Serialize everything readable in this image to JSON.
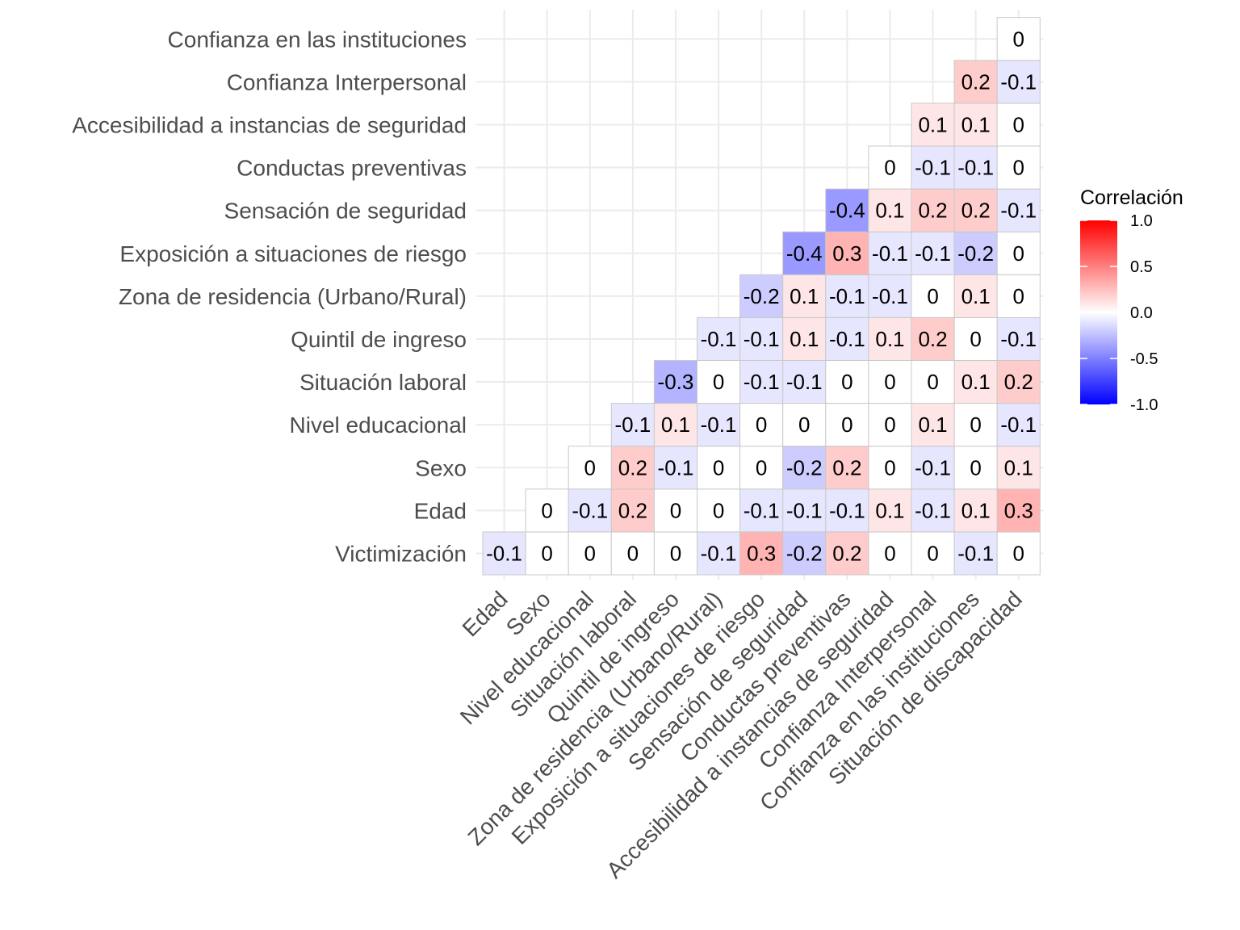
{
  "chart_data": {
    "type": "heatmap",
    "x_categories": [
      "Edad",
      "Sexo",
      "Nivel educacional",
      "Situación laboral",
      "Quintil de ingreso",
      "Zona de residencia (Urbano/Rural)",
      "Exposición a situaciones de riesgo",
      "Sensación de seguridad",
      "Conductas preventivas",
      "Accesibilidad a instancias de seguridad",
      "Confianza Interpersonal",
      "Confianza en las instituciones",
      "Situación de discapacidad"
    ],
    "y_categories": [
      "Victimización",
      "Edad",
      "Sexo",
      "Nivel educacional",
      "Situación laboral",
      "Quintil de ingreso",
      "Zona de residencia (Urbano/Rural)",
      "Exposición a situaciones de riesgo",
      "Sensación de seguridad",
      "Conductas preventivas",
      "Accesibilidad a instancias de seguridad",
      "Confianza Interpersonal",
      "Confianza en las instituciones"
    ],
    "values": [
      [
        -0.1,
        0,
        0,
        0,
        0,
        -0.1,
        0.3,
        -0.2,
        0.2,
        0,
        0,
        -0.1,
        0
      ],
      [
        null,
        0,
        -0.1,
        0.2,
        0,
        0,
        -0.1,
        -0.1,
        -0.1,
        0.1,
        -0.1,
        0.1,
        0.3
      ],
      [
        null,
        null,
        0,
        0.2,
        -0.1,
        0,
        0,
        -0.2,
        0.2,
        0,
        -0.1,
        0,
        0.1
      ],
      [
        null,
        null,
        null,
        -0.1,
        0.1,
        -0.1,
        0,
        0,
        0,
        0,
        0.1,
        0,
        -0.1
      ],
      [
        null,
        null,
        null,
        null,
        -0.3,
        0,
        -0.1,
        -0.1,
        0,
        0,
        0,
        0.1,
        0.2
      ],
      [
        null,
        null,
        null,
        null,
        null,
        -0.1,
        -0.1,
        0.1,
        -0.1,
        0.1,
        0.2,
        0,
        -0.1
      ],
      [
        null,
        null,
        null,
        null,
        null,
        null,
        -0.2,
        0.1,
        -0.1,
        -0.1,
        0,
        0.1,
        0
      ],
      [
        null,
        null,
        null,
        null,
        null,
        null,
        null,
        -0.4,
        0.3,
        -0.1,
        -0.1,
        -0.2,
        0
      ],
      [
        null,
        null,
        null,
        null,
        null,
        null,
        null,
        null,
        -0.4,
        0.1,
        0.2,
        0.2,
        -0.1
      ],
      [
        null,
        null,
        null,
        null,
        null,
        null,
        null,
        null,
        null,
        0,
        -0.1,
        -0.1,
        0
      ],
      [
        null,
        null,
        null,
        null,
        null,
        null,
        null,
        null,
        null,
        null,
        0.1,
        0.1,
        0
      ],
      [
        null,
        null,
        null,
        null,
        null,
        null,
        null,
        null,
        null,
        null,
        null,
        0.2,
        -0.1
      ],
      [
        null,
        null,
        null,
        null,
        null,
        null,
        null,
        null,
        null,
        null,
        null,
        null,
        0
      ]
    ],
    "legend": {
      "title": "Correlación",
      "ticks": [
        1.0,
        0.5,
        0.0,
        -0.5,
        -1.0
      ],
      "tick_labels": [
        "1.0",
        "0.5",
        "0.0",
        "-0.5",
        "-1.0"
      ],
      "limits": [
        -1,
        1
      ],
      "low_color": "#0000ff",
      "mid_color": "#ffffff",
      "high_color": "#ff0000"
    },
    "grid": true,
    "legend_position": "right"
  }
}
